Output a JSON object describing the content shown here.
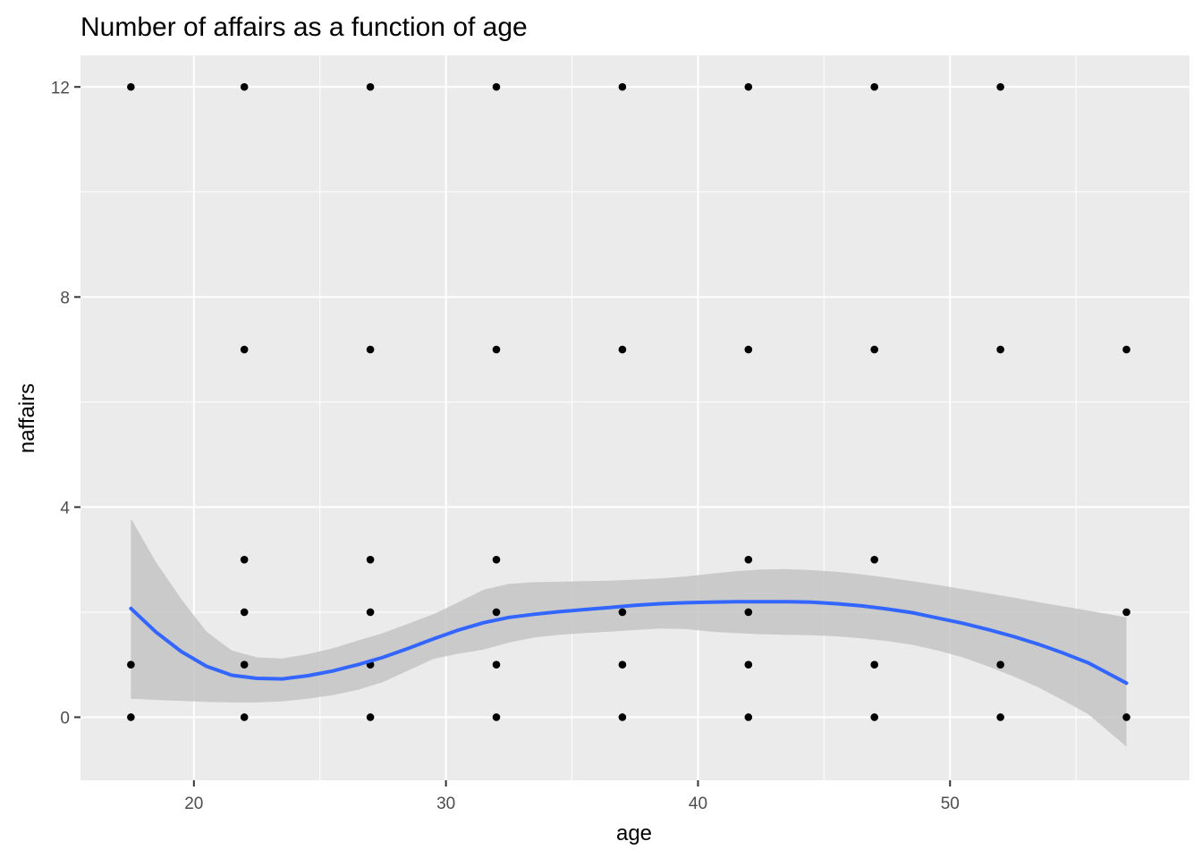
{
  "chart_data": {
    "type": "scatter",
    "title": "Number of affairs as a function of age",
    "xlabel": "age",
    "ylabel": "naffairs",
    "xlim": [
      15.5,
      59.5
    ],
    "ylim": [
      -1.2,
      12.6
    ],
    "x_ticks": [
      20,
      30,
      40,
      50
    ],
    "y_ticks": [
      0,
      4,
      8,
      12
    ],
    "grid": true,
    "colors": {
      "panel": "#EBEBEB",
      "grid": "#FFFFFF",
      "points": "#000000",
      "smooth_line": "#3366FF",
      "ribbon": "#C2C2C2"
    },
    "points": [
      {
        "x": 17.5,
        "y": 0
      },
      {
        "x": 17.5,
        "y": 1
      },
      {
        "x": 17.5,
        "y": 12
      },
      {
        "x": 22,
        "y": 0
      },
      {
        "x": 22,
        "y": 1
      },
      {
        "x": 22,
        "y": 2
      },
      {
        "x": 22,
        "y": 3
      },
      {
        "x": 22,
        "y": 7
      },
      {
        "x": 22,
        "y": 12
      },
      {
        "x": 27,
        "y": 0
      },
      {
        "x": 27,
        "y": 1
      },
      {
        "x": 27,
        "y": 2
      },
      {
        "x": 27,
        "y": 3
      },
      {
        "x": 27,
        "y": 7
      },
      {
        "x": 27,
        "y": 12
      },
      {
        "x": 32,
        "y": 0
      },
      {
        "x": 32,
        "y": 1
      },
      {
        "x": 32,
        "y": 2
      },
      {
        "x": 32,
        "y": 3
      },
      {
        "x": 32,
        "y": 7
      },
      {
        "x": 32,
        "y": 12
      },
      {
        "x": 37,
        "y": 0
      },
      {
        "x": 37,
        "y": 1
      },
      {
        "x": 37,
        "y": 2
      },
      {
        "x": 37,
        "y": 7
      },
      {
        "x": 37,
        "y": 12
      },
      {
        "x": 42,
        "y": 0
      },
      {
        "x": 42,
        "y": 1
      },
      {
        "x": 42,
        "y": 2
      },
      {
        "x": 42,
        "y": 3
      },
      {
        "x": 42,
        "y": 7
      },
      {
        "x": 42,
        "y": 12
      },
      {
        "x": 47,
        "y": 0
      },
      {
        "x": 47,
        "y": 1
      },
      {
        "x": 47,
        "y": 3
      },
      {
        "x": 47,
        "y": 7
      },
      {
        "x": 47,
        "y": 12
      },
      {
        "x": 52,
        "y": 0
      },
      {
        "x": 52,
        "y": 1
      },
      {
        "x": 52,
        "y": 7
      },
      {
        "x": 52,
        "y": 12
      },
      {
        "x": 57,
        "y": 0
      },
      {
        "x": 57,
        "y": 2
      },
      {
        "x": 57,
        "y": 7
      }
    ],
    "smooth": {
      "x": [
        17.5,
        18.5,
        19.5,
        20.5,
        21.5,
        22.5,
        23.5,
        24.5,
        25.5,
        26.5,
        27.5,
        28.5,
        29.5,
        30.5,
        31.5,
        32.5,
        33.5,
        34.5,
        35.5,
        36.5,
        37.5,
        38.5,
        39.5,
        40.5,
        41.5,
        42.5,
        43.5,
        44.5,
        45.5,
        46.5,
        47.5,
        48.5,
        49.5,
        50.5,
        51.5,
        52.5,
        53.5,
        54.5,
        55.5,
        57
      ],
      "y": [
        2.07,
        1.62,
        1.25,
        0.97,
        0.8,
        0.74,
        0.73,
        0.79,
        0.88,
        1.0,
        1.14,
        1.31,
        1.49,
        1.66,
        1.8,
        1.9,
        1.96,
        2.01,
        2.05,
        2.09,
        2.13,
        2.16,
        2.18,
        2.19,
        2.2,
        2.2,
        2.2,
        2.19,
        2.16,
        2.12,
        2.06,
        1.99,
        1.89,
        1.79,
        1.67,
        1.54,
        1.39,
        1.22,
        1.03,
        0.65
      ],
      "lower": [
        0.35,
        0.33,
        0.31,
        0.29,
        0.28,
        0.28,
        0.3,
        0.35,
        0.42,
        0.52,
        0.67,
        0.89,
        1.11,
        1.21,
        1.29,
        1.42,
        1.52,
        1.57,
        1.6,
        1.63,
        1.66,
        1.69,
        1.68,
        1.63,
        1.6,
        1.58,
        1.57,
        1.56,
        1.54,
        1.5,
        1.45,
        1.38,
        1.27,
        1.14,
        0.97,
        0.78,
        0.57,
        0.32,
        0.05,
        -0.56
      ],
      "upper": [
        3.78,
        2.95,
        2.25,
        1.63,
        1.27,
        1.14,
        1.12,
        1.2,
        1.31,
        1.46,
        1.6,
        1.78,
        1.96,
        2.19,
        2.43,
        2.54,
        2.57,
        2.58,
        2.59,
        2.6,
        2.62,
        2.64,
        2.68,
        2.73,
        2.78,
        2.81,
        2.82,
        2.8,
        2.77,
        2.72,
        2.66,
        2.59,
        2.52,
        2.44,
        2.36,
        2.28,
        2.19,
        2.11,
        2.03,
        1.9
      ]
    }
  }
}
